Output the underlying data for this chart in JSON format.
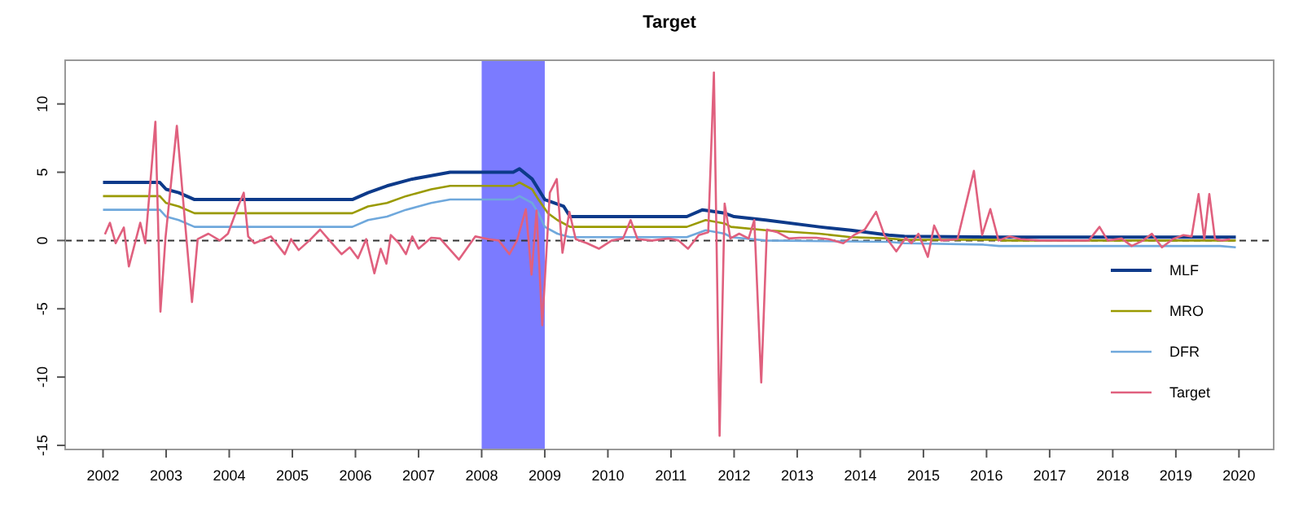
{
  "chart_data": {
    "type": "line",
    "title": "Target",
    "xlim": [
      2001.4,
      2020.55
    ],
    "xticks": [
      2002,
      2003,
      2004,
      2005,
      2006,
      2007,
      2008,
      2009,
      2010,
      2011,
      2012,
      2013,
      2014,
      2015,
      2016,
      2017,
      2018,
      2019,
      2020
    ],
    "ylim": [
      -15.3,
      13.2
    ],
    "yticks": [
      -15,
      -10,
      -5,
      0,
      5,
      10
    ],
    "grid": false,
    "legend": "bottom right",
    "line_style": "solid",
    "marker": "none",
    "bands": [
      {
        "axis": "x",
        "from": 2008,
        "to": 2009,
        "color": "#7b7bff"
      }
    ],
    "ref_lines": [
      {
        "axis": "y",
        "value": 0,
        "color": "#333333",
        "line_style": "dashed"
      }
    ],
    "series": [
      {
        "name": "MLF",
        "color": "#0d3a8a",
        "x": [
          2002,
          2002.9,
          2003.0,
          2003.2,
          2003.45,
          2005.95,
          2006.2,
          2006.5,
          2006.9,
          2007.2,
          2007.5,
          2008.5,
          2008.6,
          2008.8,
          2009.0,
          2009.3,
          2009.4,
          2011.25,
          2011.5,
          2011.85,
          2012.0,
          2012.5,
          2013.35,
          2013.85,
          2014.45,
          2014.7,
          2016.2,
          2019.95
        ],
        "values": [
          4.25,
          4.25,
          3.75,
          3.5,
          3.0,
          3.0,
          3.5,
          4.0,
          4.5,
          4.75,
          5.0,
          5.0,
          5.25,
          4.5,
          3.0,
          2.5,
          1.75,
          1.75,
          2.25,
          2.0,
          1.75,
          1.5,
          1.0,
          0.75,
          0.4,
          0.3,
          0.25,
          0.25
        ]
      },
      {
        "name": "MRO",
        "color": "#9a9a00",
        "x": [
          2002,
          2002.9,
          2003.0,
          2003.2,
          2003.45,
          2005.95,
          2006.2,
          2006.5,
          2006.8,
          2007.0,
          2007.2,
          2007.5,
          2008.5,
          2008.6,
          2008.8,
          2008.9,
          2009.05,
          2009.2,
          2009.4,
          2011.25,
          2011.55,
          2011.85,
          2011.95,
          2012.5,
          2013.35,
          2013.85,
          2014.45,
          2014.7,
          2016.2,
          2016.25,
          2019.95
        ],
        "values": [
          3.25,
          3.25,
          2.75,
          2.5,
          2.0,
          2.0,
          2.5,
          2.75,
          3.25,
          3.5,
          3.75,
          4.0,
          4.0,
          4.25,
          3.75,
          3.0,
          2.0,
          1.5,
          1.0,
          1.0,
          1.5,
          1.25,
          1.0,
          0.75,
          0.5,
          0.25,
          0.15,
          0.05,
          0.05,
          0,
          0
        ]
      },
      {
        "name": "DFR",
        "color": "#6fa8dc",
        "x": [
          2002,
          2002.9,
          2003.0,
          2003.2,
          2003.45,
          2005.95,
          2006.2,
          2006.5,
          2006.8,
          2007.0,
          2007.2,
          2007.5,
          2008.5,
          2008.6,
          2008.8,
          2008.9,
          2009.0,
          2009.2,
          2009.4,
          2011.25,
          2011.55,
          2011.85,
          2011.95,
          2012.5,
          2014.45,
          2014.7,
          2015.95,
          2016.2,
          2019.7,
          2019.95
        ],
        "values": [
          2.25,
          2.25,
          1.75,
          1.5,
          1.0,
          1.0,
          1.5,
          1.75,
          2.25,
          2.5,
          2.75,
          3.0,
          3.0,
          3.25,
          2.75,
          2.0,
          1.0,
          0.5,
          0.25,
          0.25,
          0.75,
          0.5,
          0.25,
          0,
          -0.1,
          -0.2,
          -0.3,
          -0.4,
          -0.4,
          -0.5
        ]
      },
      {
        "name": "Target",
        "color": "#e0607e",
        "x": [
          2002.03,
          2002.11,
          2002.2,
          2002.33,
          2002.41,
          2002.59,
          2002.67,
          2002.83,
          2002.91,
          2002.99,
          2003.17,
          2003.3,
          2003.41,
          2003.5,
          2003.67,
          2003.85,
          2003.98,
          2004.14,
          2004.23,
          2004.3,
          2004.4,
          2004.66,
          2004.88,
          2004.98,
          2005.1,
          2005.27,
          2005.44,
          2005.57,
          2005.78,
          2005.91,
          2006.04,
          2006.17,
          2006.3,
          2006.4,
          2006.49,
          2006.56,
          2006.69,
          2006.8,
          2006.9,
          2007.0,
          2007.2,
          2007.34,
          2007.64,
          2007.9,
          2008.11,
          2008.27,
          2008.44,
          2008.56,
          2008.7,
          2008.79,
          2008.87,
          2008.96,
          2009.08,
          2009.19,
          2009.28,
          2009.39,
          2009.49,
          2009.67,
          2009.86,
          2010.06,
          2010.24,
          2010.36,
          2010.47,
          2010.7,
          2010.96,
          2011.12,
          2011.27,
          2011.44,
          2011.59,
          2011.68,
          2011.77,
          2011.85,
          2011.94,
          2012.08,
          2012.23,
          2012.32,
          2012.43,
          2012.52,
          2012.69,
          2012.87,
          2013.04,
          2013.3,
          2013.5,
          2013.73,
          2013.9,
          2014.07,
          2014.25,
          2014.38,
          2014.57,
          2014.72,
          2014.81,
          2014.92,
          2015.07,
          2015.17,
          2015.28,
          2015.54,
          2015.8,
          2015.93,
          2016.06,
          2016.19,
          2016.36,
          2016.54,
          2016.84,
          2017.19,
          2017.62,
          2017.79,
          2017.92,
          2018.14,
          2018.3,
          2018.48,
          2018.62,
          2018.78,
          2018.95,
          2019.12,
          2019.25,
          2019.36,
          2019.45,
          2019.53,
          2019.62,
          2019.73,
          2019.86
        ],
        "values": [
          0.45,
          1.3,
          -0.2,
          0.95,
          -1.9,
          1.3,
          -0.2,
          8.7,
          -5.2,
          0.2,
          8.4,
          1.3,
          -4.5,
          0.1,
          0.5,
          0,
          0.5,
          2.5,
          3.5,
          0.3,
          -0.2,
          0.3,
          -1.0,
          0.1,
          -0.7,
          0,
          0.8,
          0.1,
          -1.0,
          -0.5,
          -1.3,
          0.1,
          -2.4,
          -0.6,
          -1.7,
          0.4,
          -0.2,
          -1.0,
          0.3,
          -0.6,
          0.2,
          0.15,
          -1.4,
          0.3,
          0.1,
          0,
          -1.0,
          0,
          2.3,
          -2.5,
          2.2,
          -6.2,
          3.5,
          4.5,
          -0.9,
          2.1,
          0.1,
          -0.2,
          -0.6,
          0,
          0.15,
          1.5,
          0.1,
          0,
          0.15,
          0,
          -0.6,
          0.4,
          0.6,
          12.3,
          -14.3,
          2.7,
          0.15,
          0.5,
          0.15,
          1.5,
          -10.4,
          0.8,
          0.6,
          0.15,
          0.2,
          0.2,
          0.1,
          -0.2,
          0.4,
          0.8,
          2.1,
          0.4,
          -0.8,
          0.2,
          -0.2,
          0.5,
          -1.2,
          1.1,
          0,
          0.1,
          5.1,
          0.4,
          2.3,
          0,
          0.3,
          0.1,
          0,
          0,
          0,
          1.0,
          0,
          0.15,
          -0.4,
          0,
          0.5,
          -0.5,
          0.1,
          0.4,
          0.3,
          3.4,
          0.1,
          3.4,
          0.1,
          0,
          0.1
        ]
      }
    ]
  }
}
